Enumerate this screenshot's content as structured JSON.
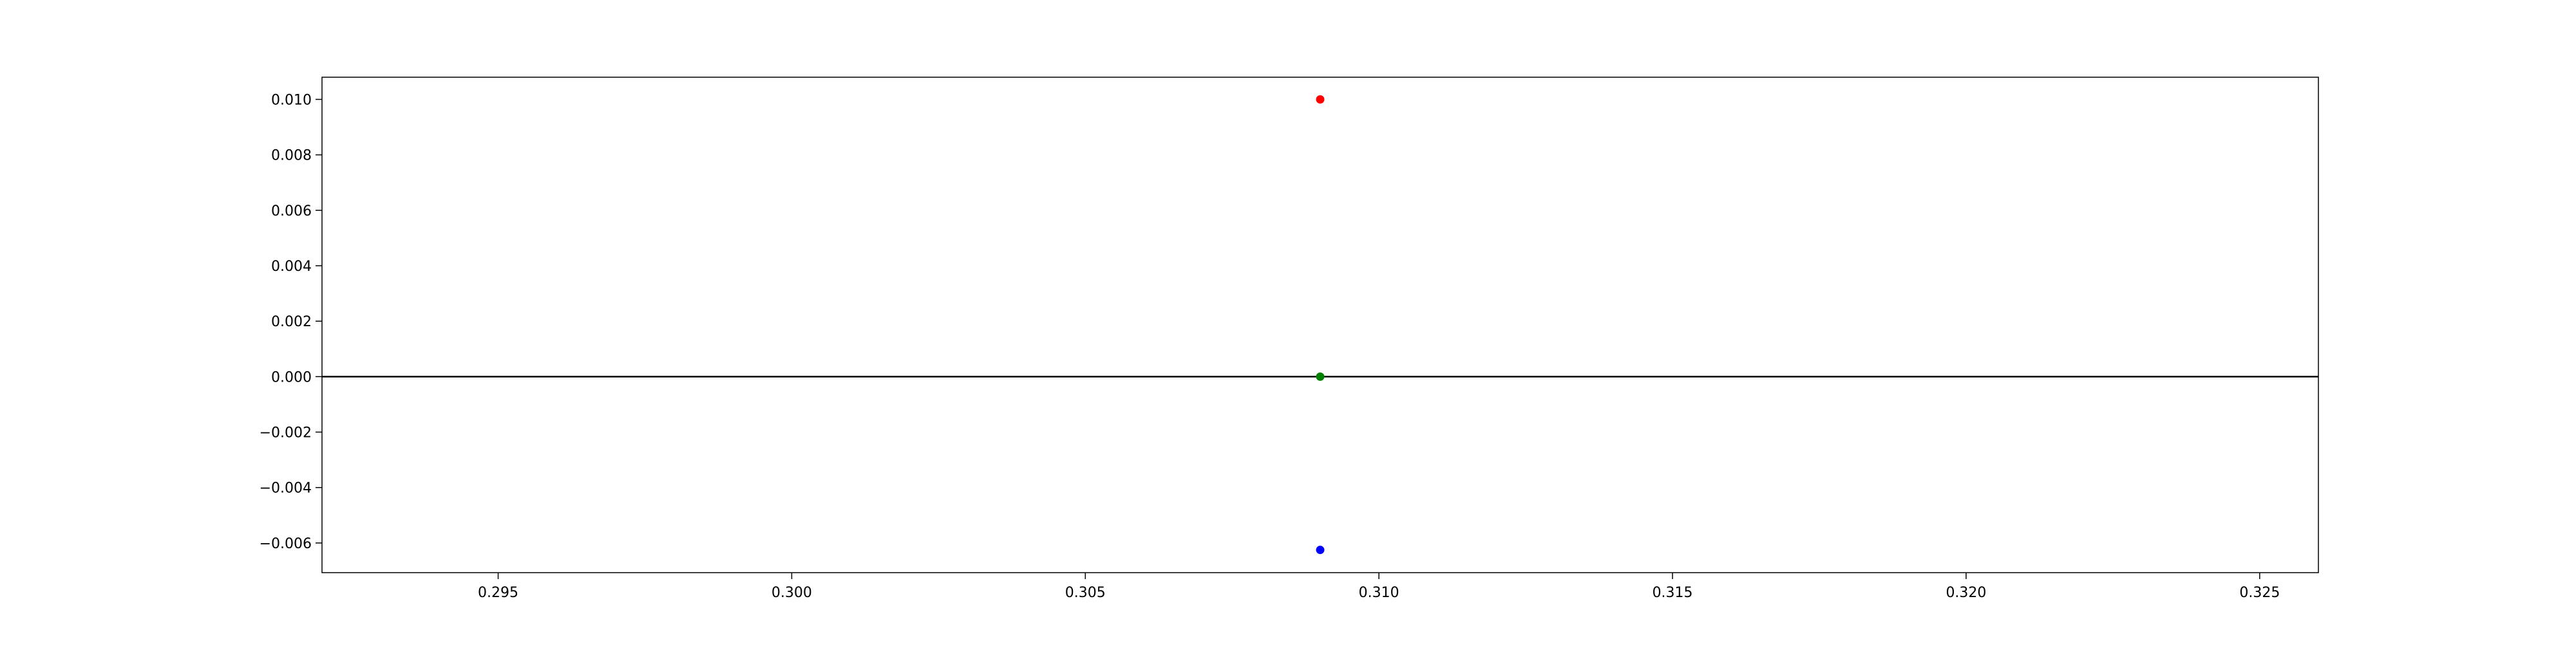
{
  "chart_data": {
    "type": "scatter",
    "title": "",
    "xlabel": "",
    "ylabel": "",
    "xlim": [
      0.292,
      0.326
    ],
    "ylim": [
      -0.00707,
      0.0108
    ],
    "grid": false,
    "x_ticks": [
      "0.295",
      "0.300",
      "0.305",
      "0.310",
      "0.315",
      "0.320",
      "0.325"
    ],
    "x_tick_values": [
      0.295,
      0.3,
      0.305,
      0.31,
      0.315,
      0.32,
      0.325
    ],
    "y_ticks": [
      "0.010",
      "0.008",
      "0.006",
      "0.004",
      "0.002",
      "0.000",
      "−0.002",
      "−0.004",
      "−0.006"
    ],
    "y_tick_values": [
      0.01,
      0.008,
      0.006,
      0.004,
      0.002,
      0.0,
      -0.002,
      -0.004,
      -0.006
    ],
    "reference_lines": [
      {
        "axis": "y",
        "value": 0.0,
        "color": "#000000"
      }
    ],
    "series": [
      {
        "color": "#ff0000",
        "points": [
          {
            "x": 0.309,
            "y": 0.01
          }
        ]
      },
      {
        "color": "#008000",
        "points": [
          {
            "x": 0.309,
            "y": 0.0
          }
        ]
      },
      {
        "color": "#0000ff",
        "points": [
          {
            "x": 0.309,
            "y": -0.00625
          }
        ]
      }
    ]
  }
}
